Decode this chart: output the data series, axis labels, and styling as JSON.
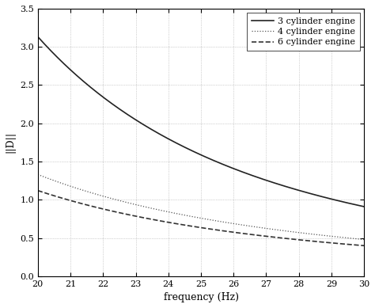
{
  "xlabel": "frequency (Hz)",
  "ylabel": "||D||",
  "xlim": [
    20,
    30
  ],
  "ylim": [
    0,
    3.5
  ],
  "xticks": [
    20,
    21,
    22,
    23,
    24,
    25,
    26,
    27,
    28,
    29,
    30
  ],
  "yticks": [
    0,
    0.5,
    1,
    1.5,
    2,
    2.5,
    3,
    3.5
  ],
  "x_start": 20,
  "x_end": 30,
  "curve_3cyl": {
    "y20": 3.13,
    "y30": 0.91
  },
  "curve_4cyl": {
    "y20": 1.33,
    "y30": 0.48
  },
  "curve_6cyl": {
    "y20": 1.12,
    "y30": 0.4
  },
  "series_labels": [
    "3 cylinder engine",
    "4 cylinder engine",
    "6 cylinder engine"
  ],
  "linestyles": [
    "solid",
    "dotted",
    "dashed"
  ],
  "colors": [
    "#222222",
    "#555555",
    "#333333"
  ],
  "linewidths": [
    1.2,
    0.9,
    1.2
  ],
  "background_color": "#ffffff",
  "plot_bg_color": "#ffffff",
  "grid_color": "#aaaaaa",
  "legend_fontsize": 8,
  "axis_fontsize": 9,
  "tick_fontsize": 8
}
